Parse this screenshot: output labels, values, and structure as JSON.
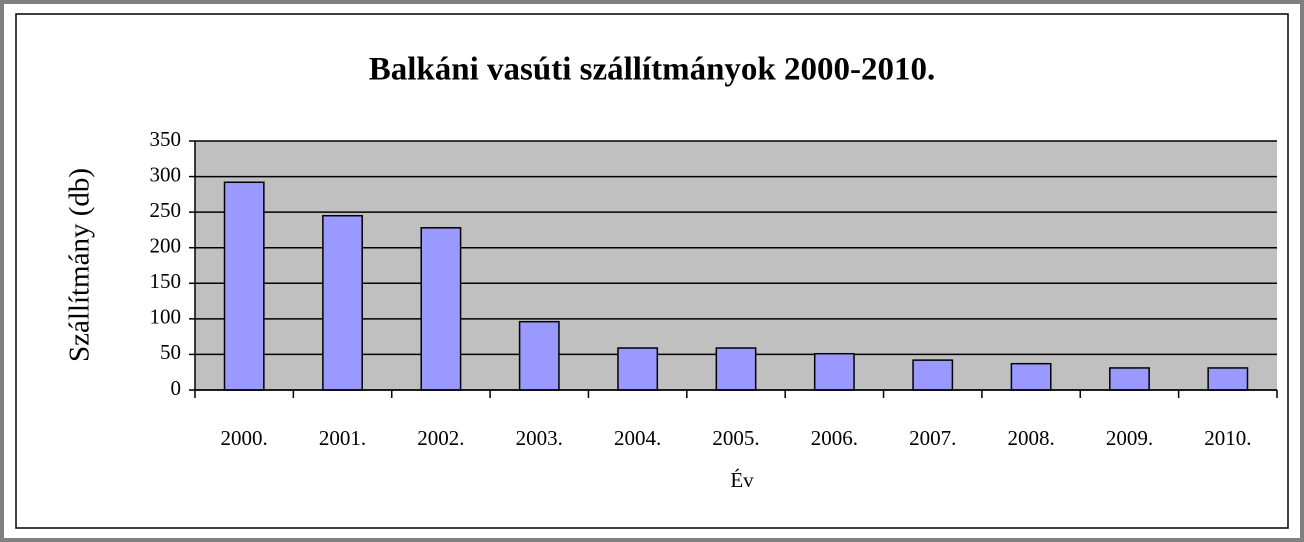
{
  "chart_data": {
    "type": "bar",
    "title": "Balkáni vasúti szállítmányok 2000-2010.",
    "x_label": "Év",
    "y_label": "Szállítmány (db)",
    "categories": [
      "2000.",
      "2001.",
      "2002.",
      "2003.",
      "2004.",
      "2005.",
      "2006.",
      "2007.",
      "2008.",
      "2009.",
      "2010."
    ],
    "values": [
      292,
      245,
      228,
      96,
      59,
      59,
      51,
      42,
      37,
      31,
      31
    ],
    "color": "#9999ff",
    "ylim": [
      0,
      350
    ],
    "yticks": [
      0,
      50,
      100,
      150,
      200,
      250,
      300,
      350
    ],
    "grid": true
  }
}
